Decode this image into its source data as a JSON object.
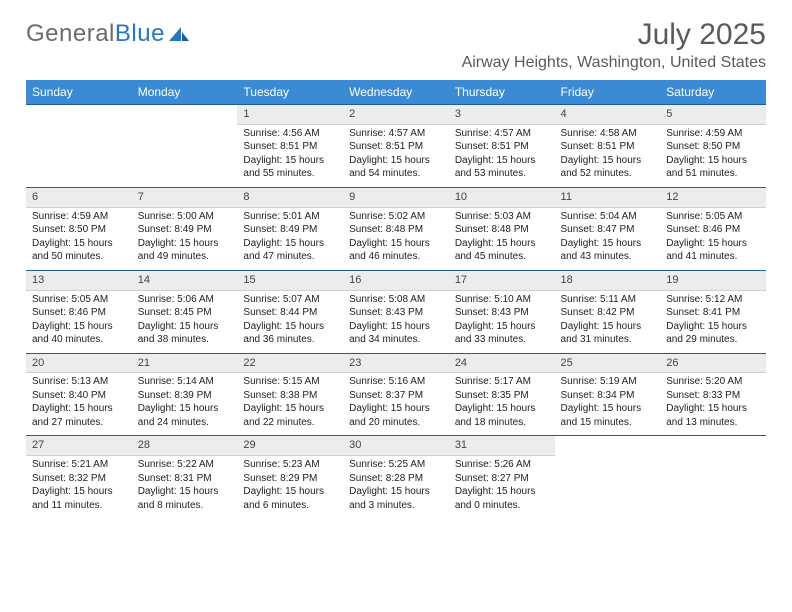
{
  "logo": {
    "word1": "General",
    "word2": "Blue"
  },
  "title": "July 2025",
  "location": "Airway Heights, Washington, United States",
  "columns": [
    "Sunday",
    "Monday",
    "Tuesday",
    "Wednesday",
    "Thursday",
    "Friday",
    "Saturday"
  ],
  "colors": {
    "header_bg": "#3b8bd4",
    "header_text": "#ffffff",
    "daynum_bg": "#ececec",
    "rule": "#1f5c99",
    "text": "#222222",
    "title": "#5a5a5a"
  },
  "weeks": [
    [
      null,
      null,
      {
        "n": "1",
        "sunrise": "4:56 AM",
        "sunset": "8:51 PM",
        "daylight": "15 hours and 55 minutes."
      },
      {
        "n": "2",
        "sunrise": "4:57 AM",
        "sunset": "8:51 PM",
        "daylight": "15 hours and 54 minutes."
      },
      {
        "n": "3",
        "sunrise": "4:57 AM",
        "sunset": "8:51 PM",
        "daylight": "15 hours and 53 minutes."
      },
      {
        "n": "4",
        "sunrise": "4:58 AM",
        "sunset": "8:51 PM",
        "daylight": "15 hours and 52 minutes."
      },
      {
        "n": "5",
        "sunrise": "4:59 AM",
        "sunset": "8:50 PM",
        "daylight": "15 hours and 51 minutes."
      }
    ],
    [
      {
        "n": "6",
        "sunrise": "4:59 AM",
        "sunset": "8:50 PM",
        "daylight": "15 hours and 50 minutes."
      },
      {
        "n": "7",
        "sunrise": "5:00 AM",
        "sunset": "8:49 PM",
        "daylight": "15 hours and 49 minutes."
      },
      {
        "n": "8",
        "sunrise": "5:01 AM",
        "sunset": "8:49 PM",
        "daylight": "15 hours and 47 minutes."
      },
      {
        "n": "9",
        "sunrise": "5:02 AM",
        "sunset": "8:48 PM",
        "daylight": "15 hours and 46 minutes."
      },
      {
        "n": "10",
        "sunrise": "5:03 AM",
        "sunset": "8:48 PM",
        "daylight": "15 hours and 45 minutes."
      },
      {
        "n": "11",
        "sunrise": "5:04 AM",
        "sunset": "8:47 PM",
        "daylight": "15 hours and 43 minutes."
      },
      {
        "n": "12",
        "sunrise": "5:05 AM",
        "sunset": "8:46 PM",
        "daylight": "15 hours and 41 minutes."
      }
    ],
    [
      {
        "n": "13",
        "sunrise": "5:05 AM",
        "sunset": "8:46 PM",
        "daylight": "15 hours and 40 minutes."
      },
      {
        "n": "14",
        "sunrise": "5:06 AM",
        "sunset": "8:45 PM",
        "daylight": "15 hours and 38 minutes."
      },
      {
        "n": "15",
        "sunrise": "5:07 AM",
        "sunset": "8:44 PM",
        "daylight": "15 hours and 36 minutes."
      },
      {
        "n": "16",
        "sunrise": "5:08 AM",
        "sunset": "8:43 PM",
        "daylight": "15 hours and 34 minutes."
      },
      {
        "n": "17",
        "sunrise": "5:10 AM",
        "sunset": "8:43 PM",
        "daylight": "15 hours and 33 minutes."
      },
      {
        "n": "18",
        "sunrise": "5:11 AM",
        "sunset": "8:42 PM",
        "daylight": "15 hours and 31 minutes."
      },
      {
        "n": "19",
        "sunrise": "5:12 AM",
        "sunset": "8:41 PM",
        "daylight": "15 hours and 29 minutes."
      }
    ],
    [
      {
        "n": "20",
        "sunrise": "5:13 AM",
        "sunset": "8:40 PM",
        "daylight": "15 hours and 27 minutes."
      },
      {
        "n": "21",
        "sunrise": "5:14 AM",
        "sunset": "8:39 PM",
        "daylight": "15 hours and 24 minutes."
      },
      {
        "n": "22",
        "sunrise": "5:15 AM",
        "sunset": "8:38 PM",
        "daylight": "15 hours and 22 minutes."
      },
      {
        "n": "23",
        "sunrise": "5:16 AM",
        "sunset": "8:37 PM",
        "daylight": "15 hours and 20 minutes."
      },
      {
        "n": "24",
        "sunrise": "5:17 AM",
        "sunset": "8:35 PM",
        "daylight": "15 hours and 18 minutes."
      },
      {
        "n": "25",
        "sunrise": "5:19 AM",
        "sunset": "8:34 PM",
        "daylight": "15 hours and 15 minutes."
      },
      {
        "n": "26",
        "sunrise": "5:20 AM",
        "sunset": "8:33 PM",
        "daylight": "15 hours and 13 minutes."
      }
    ],
    [
      {
        "n": "27",
        "sunrise": "5:21 AM",
        "sunset": "8:32 PM",
        "daylight": "15 hours and 11 minutes."
      },
      {
        "n": "28",
        "sunrise": "5:22 AM",
        "sunset": "8:31 PM",
        "daylight": "15 hours and 8 minutes."
      },
      {
        "n": "29",
        "sunrise": "5:23 AM",
        "sunset": "8:29 PM",
        "daylight": "15 hours and 6 minutes."
      },
      {
        "n": "30",
        "sunrise": "5:25 AM",
        "sunset": "8:28 PM",
        "daylight": "15 hours and 3 minutes."
      },
      {
        "n": "31",
        "sunrise": "5:26 AM",
        "sunset": "8:27 PM",
        "daylight": "15 hours and 0 minutes."
      },
      null,
      null
    ]
  ]
}
